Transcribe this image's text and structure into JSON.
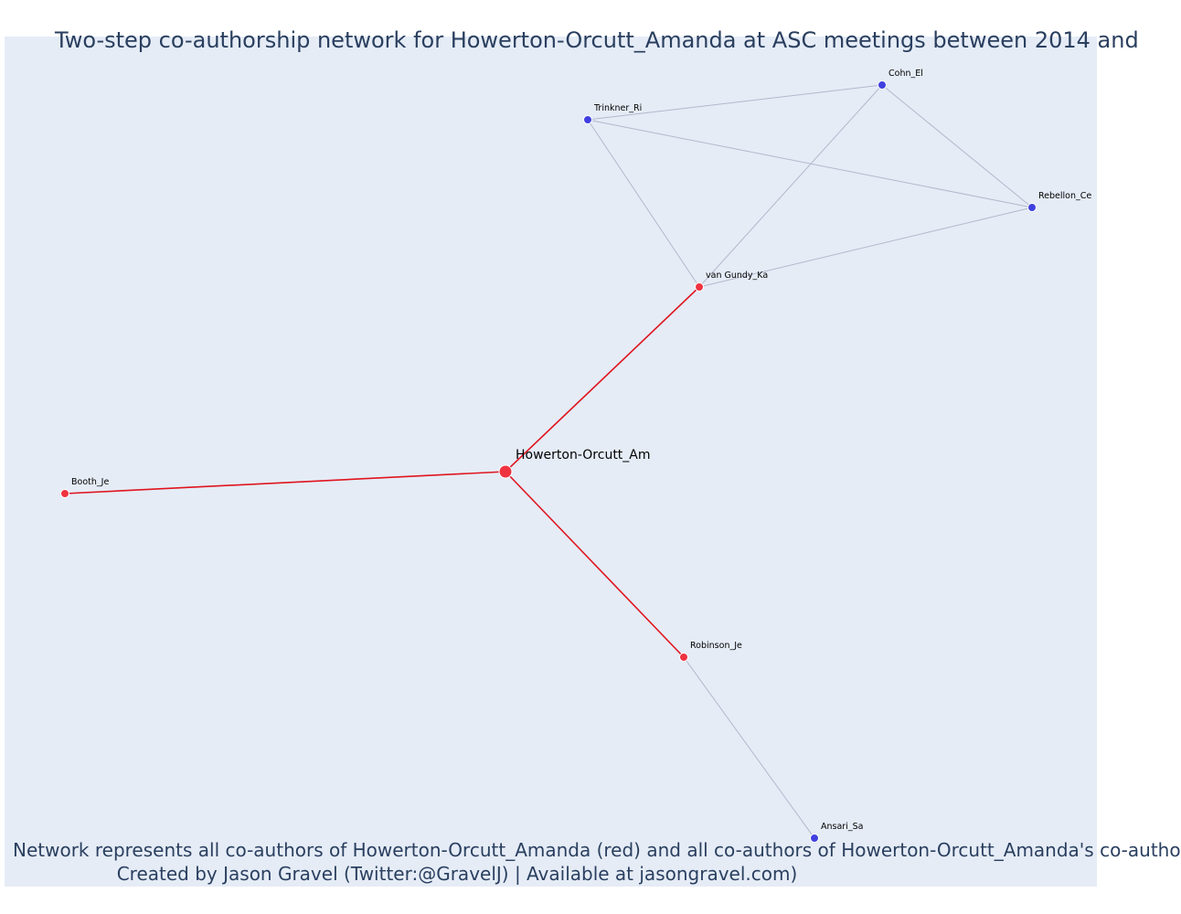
{
  "title": "Two-step co-authorship network for Howerton-Orcutt_Amanda at ASC meetings between 2014 and",
  "caption": {
    "line1": "Network represents all co-authors of Howerton-Orcutt_Amanda (red) and all co-authors of Howerton-Orcutt_Amanda's co-autho",
    "line2": "Created by Jason Gravel (Twitter:@GravelJ) | Available at jasongravel.com)"
  },
  "colors": {
    "background": "#e5ecf6",
    "direct_node": "#ef3340",
    "indirect_node": "#4040e0",
    "direct_edge": "#e0141e",
    "indirect_edge": "#b4b8cc",
    "text": "#2a3f5f"
  },
  "network": {
    "focal": "Howerton-Orcutt_Am",
    "nodes": [
      {
        "id": "Howerton-Orcutt_Am",
        "group": "focal"
      },
      {
        "id": "van Gundy_Ka",
        "group": "direct"
      },
      {
        "id": "Booth_Je",
        "group": "direct"
      },
      {
        "id": "Robinson_Je",
        "group": "direct"
      },
      {
        "id": "Trinkner_Ri",
        "group": "indirect"
      },
      {
        "id": "Cohn_El",
        "group": "indirect"
      },
      {
        "id": "Rebellon_Ce",
        "group": "indirect"
      },
      {
        "id": "Ansari_Sa",
        "group": "indirect"
      }
    ],
    "edges": [
      {
        "source": "Howerton-Orcutt_Am",
        "target": "van Gundy_Ka",
        "type": "direct"
      },
      {
        "source": "Howerton-Orcutt_Am",
        "target": "Booth_Je",
        "type": "direct"
      },
      {
        "source": "Howerton-Orcutt_Am",
        "target": "Robinson_Je",
        "type": "direct"
      },
      {
        "source": "van Gundy_Ka",
        "target": "Trinkner_Ri",
        "type": "indirect"
      },
      {
        "source": "van Gundy_Ka",
        "target": "Cohn_El",
        "type": "indirect"
      },
      {
        "source": "van Gundy_Ka",
        "target": "Rebellon_Ce",
        "type": "indirect"
      },
      {
        "source": "Trinkner_Ri",
        "target": "Cohn_El",
        "type": "indirect"
      },
      {
        "source": "Trinkner_Ri",
        "target": "Rebellon_Ce",
        "type": "indirect"
      },
      {
        "source": "Cohn_El",
        "target": "Rebellon_Ce",
        "type": "indirect"
      },
      {
        "source": "Robinson_Je",
        "target": "Ansari_Sa",
        "type": "indirect"
      }
    ]
  }
}
